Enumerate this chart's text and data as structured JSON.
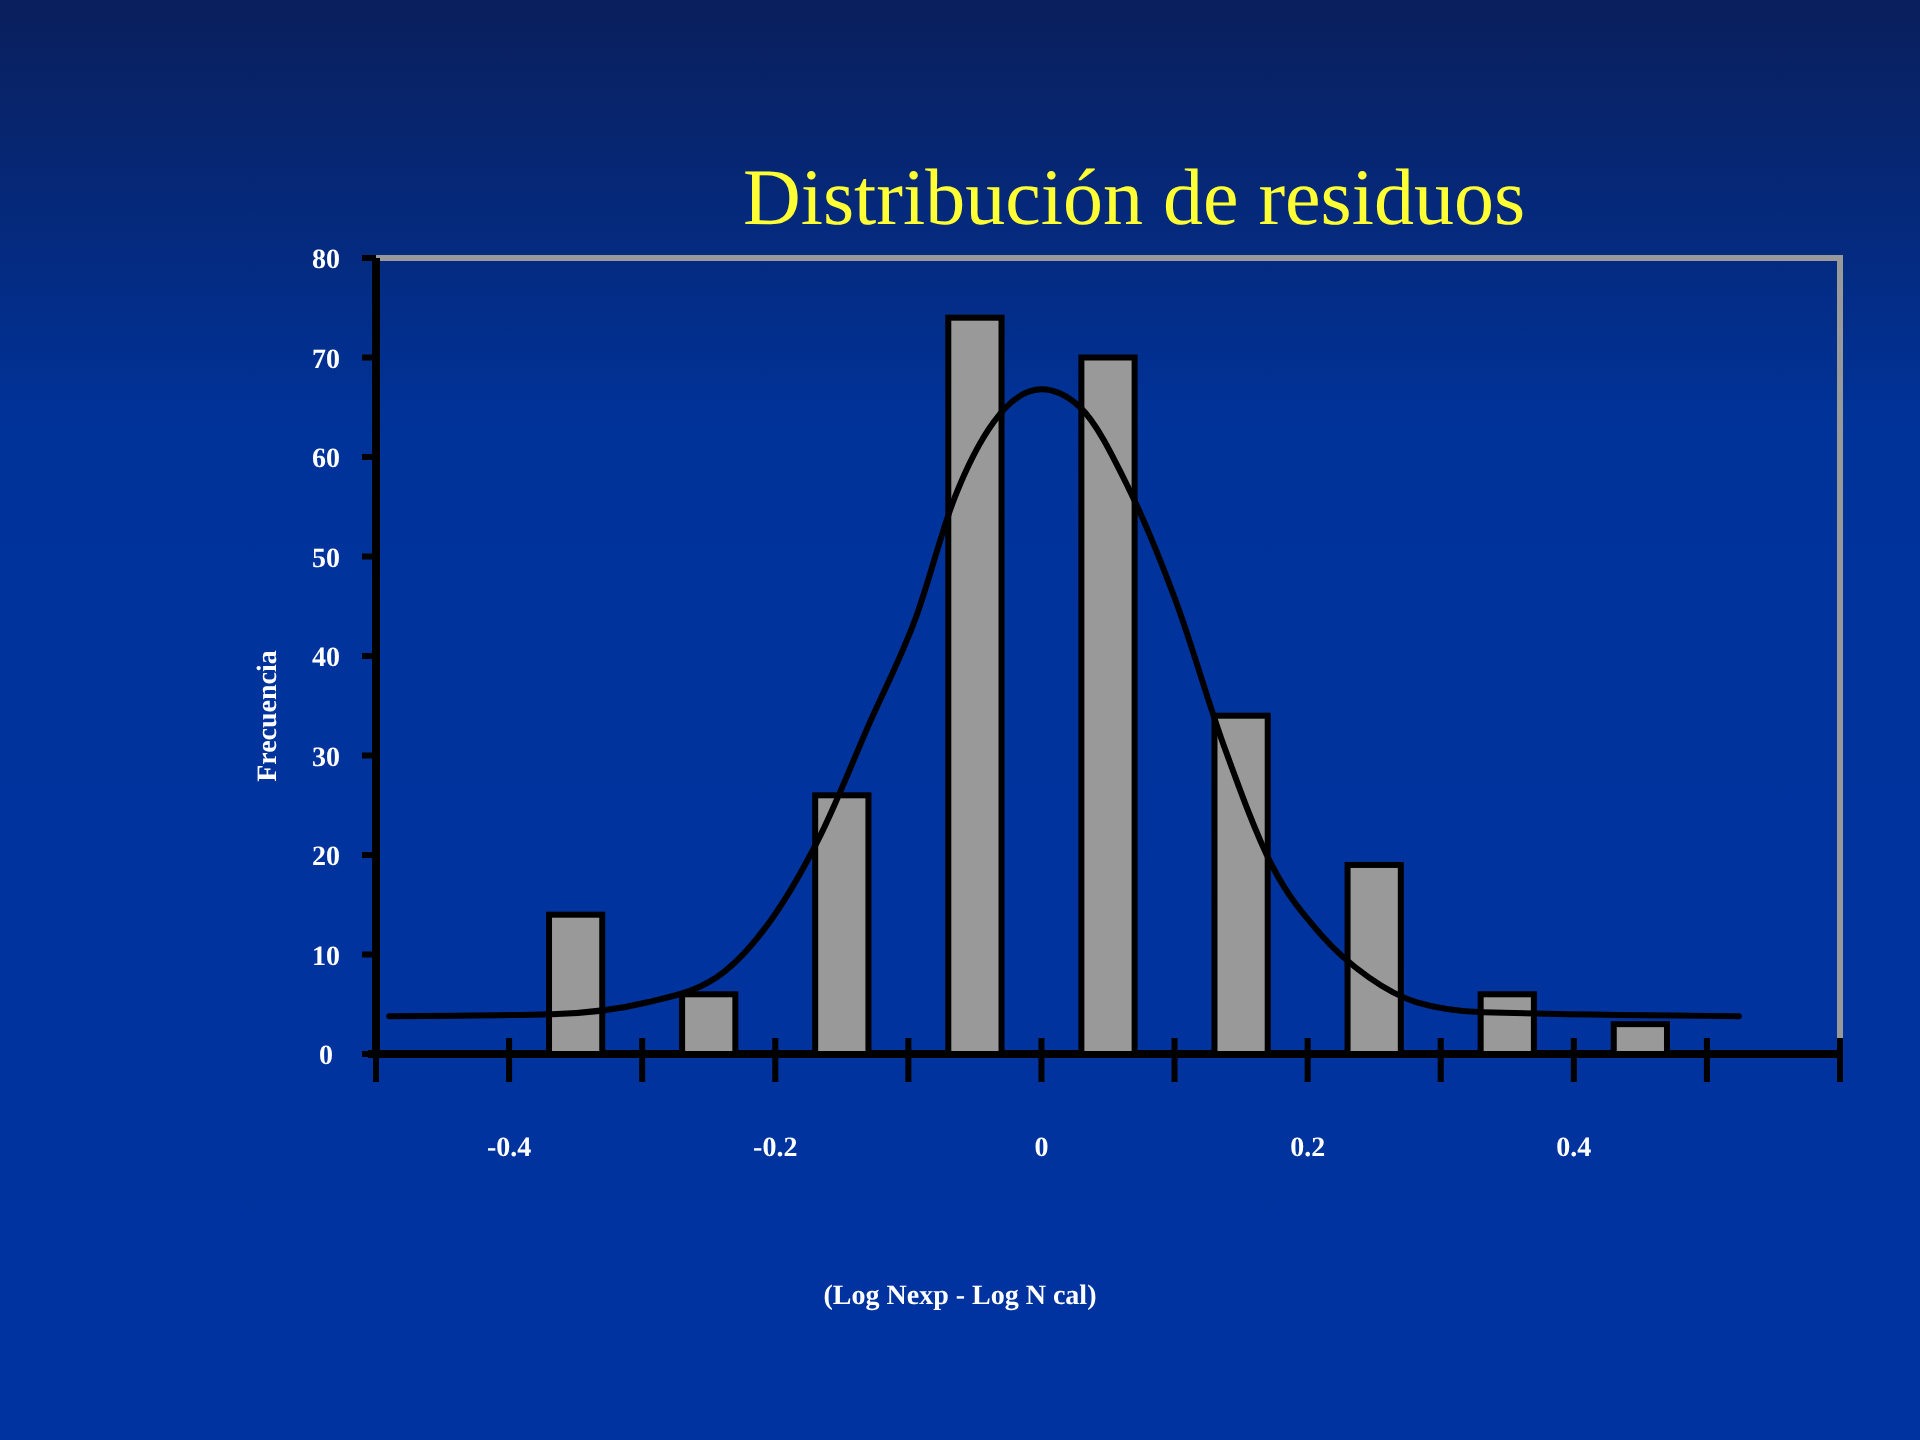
{
  "chart_data": {
    "type": "bar",
    "title": "Distribución de residuos",
    "xlabel": "(Log Nexp - Log N cal)",
    "ylabel": "Frecuencia",
    "x": [
      -0.35,
      -0.25,
      -0.15,
      -0.05,
      0.05,
      0.15,
      0.25,
      0.35,
      0.45
    ],
    "values": [
      14,
      6,
      26,
      74,
      70,
      34,
      19,
      6,
      3
    ],
    "color": "#999999",
    "series": [
      {
        "type": "line",
        "color": "#000000",
        "x": [
          -0.49,
          -0.368,
          -0.296,
          -0.238,
          -0.202,
          -0.166,
          -0.13,
          -0.094,
          -0.065,
          -0.036,
          0,
          0.029,
          0.065,
          0.101,
          0.137,
          0.173,
          0.21,
          0.246,
          0.282,
          0.332,
          0.524
        ],
        "values": [
          3.8,
          4,
          5.2,
          8.3,
          13.7,
          22,
          33,
          44,
          56,
          63.5,
          66.8,
          65,
          57,
          45.5,
          31,
          19,
          12,
          7.7,
          5.2,
          4.2,
          3.8
        ]
      }
    ],
    "xlim": [
      -0.5,
      0.6
    ],
    "xticks": [
      -0.4,
      -0.2,
      0,
      0.2,
      0.4
    ],
    "ylim": [
      0,
      80
    ],
    "yticks": [
      0,
      10,
      20,
      30,
      40,
      50,
      60,
      70,
      80
    ],
    "marker": "none",
    "line_style": "solid"
  }
}
